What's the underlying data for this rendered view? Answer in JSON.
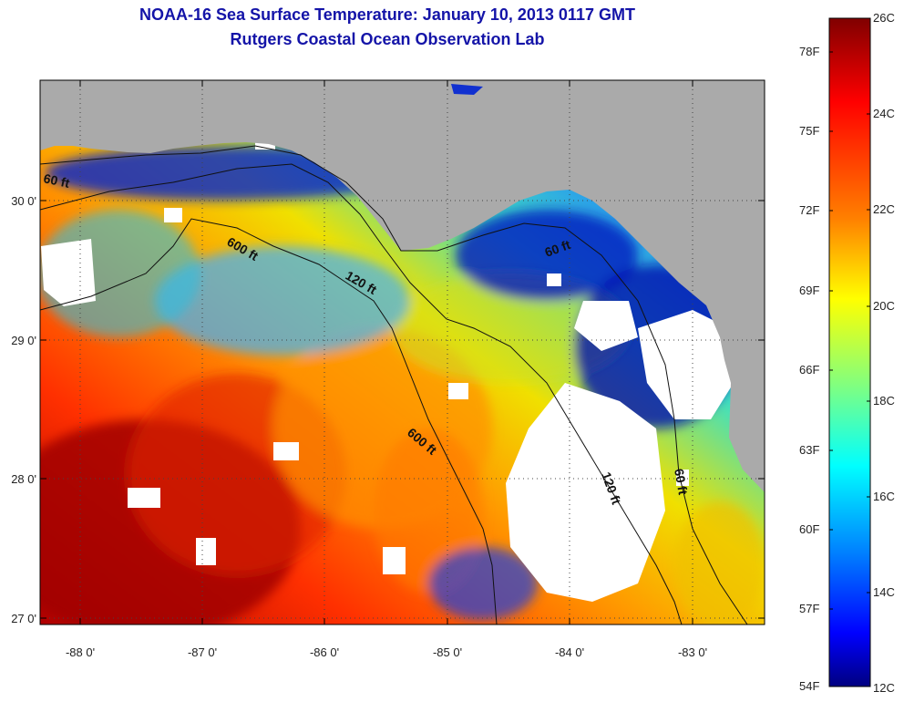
{
  "header": {
    "title": "NOAA-16 Sea Surface Temperature:  January 10, 2013 0117 GMT",
    "subtitle": "Rutgers Coastal Ocean Observation Lab"
  },
  "map": {
    "lat_labels": [
      "30 0'",
      "29 0'",
      "28 0'",
      "27 0'"
    ],
    "lon_labels": [
      "-88 0'",
      "-87 0'",
      "-86 0'",
      "-85 0'",
      "-84 0'",
      "-83 0'"
    ],
    "lat_range": [
      26.97,
      30.85
    ],
    "lon_range": [
      -88.3,
      -82.45
    ],
    "grid": "dotted",
    "land_color": "#aaaaaa",
    "cloud_color": "#ffffff",
    "contours": [
      {
        "label": "60 ft"
      },
      {
        "label": "600 ft"
      },
      {
        "label": "120 ft"
      },
      {
        "label": "60 ft"
      },
      {
        "label": "600 ft"
      },
      {
        "label": "120 ft"
      },
      {
        "label": "60 ft"
      }
    ]
  },
  "colorbar": {
    "fahrenheit_labels": [
      "78F",
      "75F",
      "72F",
      "69F",
      "66F",
      "63F",
      "60F",
      "57F",
      "54F"
    ],
    "celsius_labels": [
      "26C",
      "24C",
      "22C",
      "20C",
      "18C",
      "16C",
      "14C",
      "12C"
    ],
    "colors": [
      "#800000",
      "#ff0000",
      "#ff8000",
      "#ffff00",
      "#80ff80",
      "#00ffff",
      "#0080ff",
      "#0000ff",
      "#000080"
    ]
  }
}
